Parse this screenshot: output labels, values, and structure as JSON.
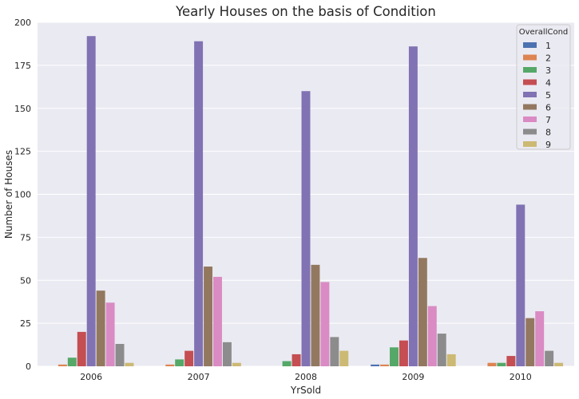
{
  "chart_data": {
    "type": "bar",
    "title": "Yearly Houses on the basis of Condition",
    "xlabel": "YrSold",
    "ylabel": "Number of Houses",
    "categories": [
      "2006",
      "2007",
      "2008",
      "2009",
      "2010"
    ],
    "ylim": [
      0,
      200
    ],
    "yticks": [
      0,
      25,
      50,
      75,
      100,
      125,
      150,
      175,
      200
    ],
    "grid": true,
    "legend": {
      "title": "OverallCond",
      "placement": "top-right"
    },
    "series": [
      {
        "name": "1",
        "color": "#4c72b0",
        "values": [
          0,
          0,
          0,
          1,
          0
        ]
      },
      {
        "name": "2",
        "color": "#dd8452",
        "values": [
          1,
          1,
          0,
          1,
          2
        ]
      },
      {
        "name": "3",
        "color": "#55a868",
        "values": [
          5,
          4,
          3,
          11,
          2
        ]
      },
      {
        "name": "4",
        "color": "#c44e52",
        "values": [
          20,
          9,
          7,
          15,
          6
        ]
      },
      {
        "name": "5",
        "color": "#8172b3",
        "values": [
          192,
          189,
          160,
          186,
          94
        ]
      },
      {
        "name": "6",
        "color": "#937860",
        "values": [
          44,
          58,
          59,
          63,
          28
        ]
      },
      {
        "name": "7",
        "color": "#da8bc3",
        "values": [
          37,
          52,
          49,
          35,
          32
        ]
      },
      {
        "name": "8",
        "color": "#8c8c8c",
        "values": [
          13,
          14,
          17,
          19,
          9
        ]
      },
      {
        "name": "9",
        "color": "#ccb974",
        "values": [
          2,
          2,
          9,
          7,
          2
        ]
      }
    ]
  },
  "style": {
    "plot_background": "#eaeaf2",
    "grid_color": "#ffffff"
  }
}
